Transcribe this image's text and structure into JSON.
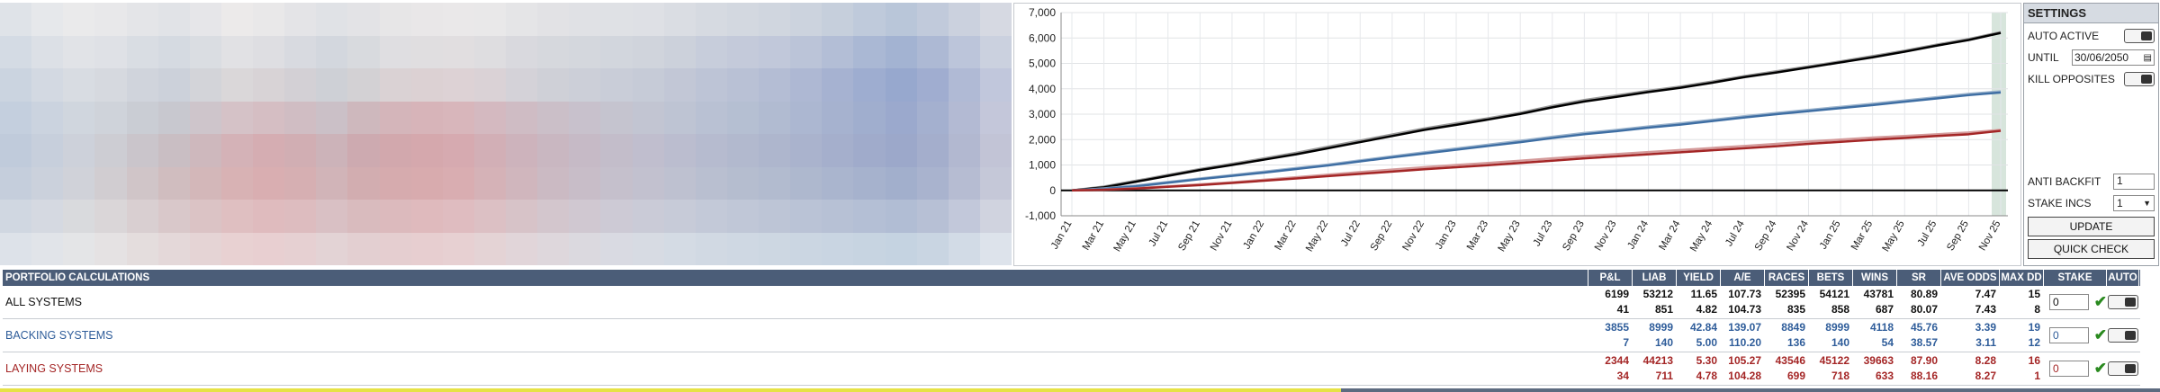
{
  "heatmap": {
    "colors": [
      [
        "#dfe3e8",
        "#e6e8eb",
        "#eaeaeb",
        "#e8e8ea",
        "#e4e5e8",
        "#e1e3e7",
        "#e6e6e9",
        "#eceaea",
        "#e9e8e9",
        "#e4e4e7",
        "#e0e2e6",
        "#e3e3e6",
        "#e7e6e7",
        "#e9e7e8",
        "#eae8e9",
        "#e9e8e9",
        "#e5e5e7",
        "#e2e2e5",
        "#e0e1e5",
        "#dfe1e5",
        "#dee0e5",
        "#dadde3",
        "#d6dae1",
        "#d3d8e0",
        "#d0d6df",
        "#ccd3de",
        "#c6cfdc",
        "#bfcadb",
        "#b9c6d9",
        "#c1cadb",
        "#cbd1de",
        "#d6d9e2"
      ],
      [
        "#d4dbe4",
        "#dce0e6",
        "#e1e3e7",
        "#dfe1e6",
        "#d9dde3",
        "#d5dae1",
        "#dadde2",
        "#e1e1e4",
        "#dedee2",
        "#d8dae0",
        "#d3d7de",
        "#d8dade",
        "#dfdee1",
        "#e0dee0",
        "#e1dee0",
        "#dedde0",
        "#d9d9de",
        "#d6d8dd",
        "#d4d7dd",
        "#d2d6dd",
        "#d0d4dc",
        "#ccd1db",
        "#c7cddb",
        "#c4cada",
        "#c1c8da",
        "#bbc4d8",
        "#b3bed6",
        "#aab8d4",
        "#a3b3d2",
        "#adb9d4",
        "#bcc5da",
        "#cbd1df"
      ],
      [
        "#cbd4e0",
        "#d3d9e2",
        "#d8dce2",
        "#d6d9df",
        "#d0d4dc",
        "#ccd1da",
        "#d3d4d9",
        "#dad7d9",
        "#d8d3d6",
        "#d3d0d5",
        "#ced0d6",
        "#d3d1d4",
        "#dad2d4",
        "#dcd1d3",
        "#ddd2d5",
        "#dad2d6",
        "#d4d2d8",
        "#cfd0d7",
        "#cccfd8",
        "#c9cdd8",
        "#c6cbd7",
        "#c2c7d6",
        "#bdc4d6",
        "#b9c1d5",
        "#b4bdd4",
        "#aeb8d3",
        "#a6b2d1",
        "#9eadd0",
        "#97a8ce",
        "#a0add0",
        "#b0bad5",
        "#c1c7dc"
      ],
      [
        "#c4cfde",
        "#cbd3df",
        "#d0d6de",
        "#cfd3da",
        "#cacdd4",
        "#c8c8cf",
        "#cec5cb",
        "#d5c2c7",
        "#d5bec3",
        "#d0bdc3",
        "#cbc0c7",
        "#ceb8bd",
        "#d4b5ba",
        "#d7b4b9",
        "#d8b6bb",
        "#d4b9c0",
        "#cfbcc4",
        "#cbbfc8",
        "#c8c1cc",
        "#c5c4cf",
        "#c2c5d2",
        "#bec4d3",
        "#b9c1d3",
        "#b5bfd2",
        "#b1bbd1",
        "#acb7d1",
        "#a6b2cf",
        "#a0aece",
        "#9ba9cd",
        "#a4b0cf",
        "#b3bad3",
        "#c4c7da"
      ],
      [
        "#c0cbdb",
        "#c7cfdc",
        "#cdd1da",
        "#cdcdd3",
        "#cac5cb",
        "#c9bec3",
        "#ceb8bd",
        "#d4b2b7",
        "#d5adb2",
        "#d1aeb3",
        "#ccb3b9",
        "#cdaab0",
        "#d2a8ad",
        "#d5a8ad",
        "#d6aab0",
        "#d2afb6",
        "#cdb3bc",
        "#c9b7c1",
        "#c6bac6",
        "#c3bdca",
        "#c0bece",
        "#bbbdcf",
        "#b6bbcf",
        "#b2b9ce",
        "#aeb6cd",
        "#aab3cd",
        "#a5afcc",
        "#a0abcb",
        "#9ca8ca",
        "#a4aecc",
        "#b2b8d0",
        "#c2c4d6"
      ],
      [
        "#c5cedc",
        "#cbd1dc",
        "#d0d2d9",
        "#d1cdd1",
        "#d0c5c8",
        "#d0bdbf",
        "#d3b7b9",
        "#d8b2b4",
        "#d9aeb1",
        "#d6afb2",
        "#d1b4b8",
        "#d2adb0",
        "#d6abae",
        "#d8abae",
        "#d9adb1",
        "#d5b2b7",
        "#d0b6bd",
        "#cbbac3",
        "#c8bdc8",
        "#c5c0cc",
        "#c2c1cf",
        "#bec1d0",
        "#b9bfd0",
        "#b5bdcf",
        "#b2bbcf",
        "#aeb8ce",
        "#aab5ce",
        "#a6b2cd",
        "#a2afcc",
        "#a9b3ce",
        "#b6bcd2",
        "#c5c8d8"
      ],
      [
        "#d0d7e1",
        "#d5d9e1",
        "#d9dadd",
        "#dad6d8",
        "#d9cfd1",
        "#d9c8ca",
        "#dbc3c5",
        "#dfbfc1",
        "#dfbbbe",
        "#ddbcbf",
        "#d9c0c4",
        "#d9bbbe",
        "#dcbabd",
        "#dfbabd",
        "#dfbcc0",
        "#dcc0c4",
        "#d7c3c8",
        "#d3c6cd",
        "#d0c8d1",
        "#cdcad5",
        "#cacbd7",
        "#c7cbd8",
        "#c3c9d8",
        "#c0c7d7",
        "#bdc5d6",
        "#bac3d6",
        "#b7c1d5",
        "#b4bfd5",
        "#b1bdd4",
        "#b7c0d5",
        "#c2c8da",
        "#d0d3df"
      ],
      [
        "#dde2e9",
        "#e1e4e9",
        "#e4e5e7",
        "#e5e2e3",
        "#e4dddd",
        "#e4d8d9",
        "#e5d4d5",
        "#e8d1d2",
        "#e8cfd1",
        "#e6d0d2",
        "#e3d3d5",
        "#e3cfd1",
        "#e5ced0",
        "#e7ced0",
        "#e7d0d2",
        "#e4d3d5",
        "#e1d5d9",
        "#ded7dc",
        "#dbd9df",
        "#d9dae2",
        "#d7dbe3",
        "#d4dbe4",
        "#d1d9e3",
        "#cfd8e3",
        "#cdd7e2",
        "#cbd6e2",
        "#c9d5e2",
        "#c7d4e1",
        "#c5d3e1",
        "#c9d5e2",
        "#d2dbe6",
        "#dde3eb"
      ]
    ]
  },
  "chart": {
    "chart_data": {
      "type": "line",
      "x_ticks": [
        "Jan 21",
        "Mar 21",
        "May 21",
        "Jul 21",
        "Sep 21",
        "Nov 21",
        "Jan 22",
        "Mar 22",
        "May 22",
        "Jul 22",
        "Sep 22",
        "Nov 22",
        "Jan 23",
        "Mar 23",
        "May 23",
        "Jul 23",
        "Sep 23",
        "Nov 23",
        "Jan 24",
        "Mar 24",
        "May 24",
        "Jul 24",
        "Sep 24",
        "Nov 24",
        "Jan 25",
        "Mar 25",
        "May 25",
        "Jul 25",
        "Sep 25",
        "Nov 25"
      ],
      "y_ticks": [
        "7,000",
        "6,000",
        "5,000",
        "4,000",
        "3,000",
        "2,000",
        "1,000",
        "0",
        "-1,000"
      ],
      "ylim": [
        -1000,
        7000
      ],
      "grid": true,
      "series": [
        {
          "color": "#999999",
          "values": [
            0,
            150,
            380,
            610,
            840,
            1050,
            1260,
            1480,
            1720,
            1960,
            2200,
            2440,
            2640,
            2840,
            3060,
            3330,
            3560,
            3740,
            3920,
            4090,
            4290,
            4500,
            4690,
            4880,
            5080,
            5290,
            5500,
            5740,
            5960,
            6230
          ]
        },
        {
          "color": "#000000",
          "values": [
            0,
            120,
            340,
            570,
            800,
            1000,
            1210,
            1420,
            1660,
            1900,
            2140,
            2380,
            2580,
            2790,
            3010,
            3270,
            3500,
            3680,
            3870,
            4040,
            4240,
            4460,
            4640,
            4840,
            5040,
            5240,
            5460,
            5700,
            5920,
            6199
          ]
        },
        {
          "color": "#9bb3cc",
          "values": [
            0,
            80,
            190,
            330,
            470,
            600,
            740,
            880,
            1020,
            1180,
            1340,
            1500,
            1650,
            1800,
            1950,
            2110,
            2260,
            2380,
            2520,
            2640,
            2780,
            2920,
            3050,
            3170,
            3290,
            3410,
            3540,
            3670,
            3800,
            3900
          ]
        },
        {
          "color": "#3e6ea3",
          "values": [
            0,
            60,
            160,
            300,
            440,
            570,
            700,
            840,
            980,
            1140,
            1300,
            1450,
            1600,
            1750,
            1900,
            2060,
            2210,
            2330,
            2470,
            2590,
            2730,
            2870,
            3000,
            3120,
            3240,
            3360,
            3490,
            3620,
            3750,
            3855
          ]
        },
        {
          "color": "#d49a9a",
          "values": [
            0,
            30,
            90,
            160,
            240,
            320,
            420,
            520,
            620,
            720,
            820,
            910,
            1000,
            1080,
            1170,
            1260,
            1350,
            1430,
            1510,
            1590,
            1670,
            1750,
            1830,
            1920,
            2000,
            2080,
            2140,
            2210,
            2280,
            2380
          ]
        },
        {
          "color": "#a42626",
          "values": [
            0,
            20,
            70,
            140,
            210,
            290,
            380,
            470,
            560,
            650,
            740,
            830,
            910,
            990,
            1080,
            1170,
            1260,
            1340,
            1420,
            1500,
            1580,
            1660,
            1740,
            1830,
            1910,
            1990,
            2060,
            2140,
            2210,
            2344
          ]
        }
      ]
    }
  },
  "settings": {
    "title": "SETTINGS",
    "auto_active_label": "AUTO ACTIVE",
    "until_label": "UNTIL",
    "until_value": "30/06/2050",
    "kill_opposites_label": "KILL OPPOSITES",
    "anti_backfit_label": "ANTI BACKFIT",
    "anti_backfit_value": "1",
    "stake_incs_label": "STAKE INCS",
    "stake_incs_value": "1",
    "update_label": "UPDATE",
    "quick_check_label": "QUICK CHECK"
  },
  "table": {
    "title": "PORTFOLIO CALCULATIONS",
    "columns": [
      "P&L",
      "LIAB",
      "YIELD",
      "A/E",
      "RACES",
      "BETS",
      "WINS",
      "SR",
      "AVE ODDS",
      "MAX DD",
      "STAKE",
      "AUTO"
    ],
    "rows": [
      {
        "name": "ALL SYSTEMS",
        "top": [
          "6199",
          "53212",
          "11.65",
          "107.73",
          "52395",
          "54121",
          "43781",
          "80.89",
          "7.47",
          "15"
        ],
        "bottom": [
          "41",
          "851",
          "4.82",
          "104.73",
          "835",
          "858",
          "687",
          "80.07",
          "7.43",
          "8"
        ],
        "stake": "0"
      },
      {
        "name": "BACKING SYSTEMS",
        "top": [
          "3855",
          "8999",
          "42.84",
          "139.07",
          "8849",
          "8999",
          "4118",
          "45.76",
          "3.39",
          "19"
        ],
        "bottom": [
          "7",
          "140",
          "5.00",
          "110.20",
          "136",
          "140",
          "54",
          "38.57",
          "3.11",
          "12"
        ],
        "stake": "0"
      },
      {
        "name": "LAYING SYSTEMS",
        "top": [
          "2344",
          "44213",
          "5.30",
          "105.27",
          "43546",
          "45122",
          "39663",
          "87.90",
          "8.28",
          "16"
        ],
        "bottom": [
          "34",
          "711",
          "4.78",
          "104.28",
          "699",
          "718",
          "633",
          "88.16",
          "8.27",
          "1"
        ],
        "stake": "0"
      }
    ]
  }
}
